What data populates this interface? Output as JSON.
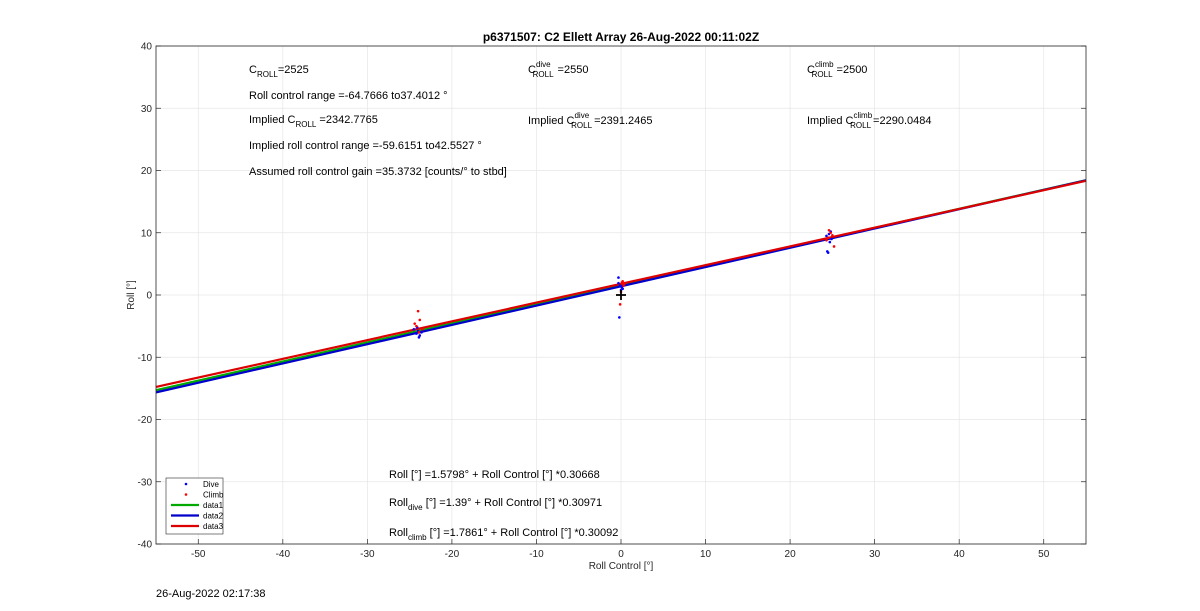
{
  "chart_data": {
    "type": "scatter",
    "title": "p6371507: C2 Ellett Array 26-Aug-2022 00:11:02Z",
    "xlabel": "Roll Control [°]",
    "ylabel": "Roll [°]",
    "xlim": [
      -55,
      55
    ],
    "ylim": [
      -40,
      40
    ],
    "xticks": [
      -50,
      -40,
      -30,
      -20,
      -10,
      0,
      10,
      20,
      30,
      40,
      50
    ],
    "yticks": [
      -40,
      -30,
      -20,
      -10,
      0,
      10,
      20,
      30,
      40
    ],
    "grid": true,
    "legend_position": "bottom-left",
    "series": [
      {
        "name": "Dive",
        "kind": "points",
        "color": "#0000ff",
        "points": [
          [
            -24.2,
            -6.2
          ],
          [
            -24.0,
            -5.8
          ],
          [
            -23.8,
            -6.5
          ],
          [
            -24.5,
            -5.5
          ],
          [
            -23.6,
            -6.0
          ],
          [
            -24.1,
            -5.2
          ],
          [
            -23.9,
            -6.8
          ],
          [
            -0.3,
            2.8
          ],
          [
            -0.1,
            1.5
          ],
          [
            0.1,
            1.2
          ],
          [
            -0.2,
            -3.6
          ],
          [
            0.0,
            0.8
          ],
          [
            -0.3,
            1.9
          ],
          [
            0.2,
            1.0
          ],
          [
            24.3,
            9.5
          ],
          [
            24.6,
            9.8
          ],
          [
            24.8,
            10.2
          ],
          [
            24.4,
            7.0
          ],
          [
            24.9,
            9.0
          ],
          [
            24.7,
            8.5
          ],
          [
            24.5,
            6.8
          ]
        ]
      },
      {
        "name": "Climb",
        "kind": "points",
        "color": "#ff0000",
        "points": [
          [
            -24.0,
            -2.6
          ],
          [
            -23.8,
            -4.0
          ],
          [
            -24.2,
            -5.0
          ],
          [
            -23.5,
            -5.5
          ],
          [
            -24.4,
            -4.6
          ],
          [
            -23.9,
            -6.0
          ],
          [
            0.1,
            2.0
          ],
          [
            0.3,
            1.5
          ],
          [
            -0.1,
            -1.5
          ],
          [
            0.2,
            2.2
          ],
          [
            0.0,
            0.5
          ],
          [
            0.4,
            1.8
          ],
          [
            24.5,
            9.2
          ],
          [
            24.8,
            10.0
          ],
          [
            25.2,
            7.8
          ],
          [
            24.3,
            8.8
          ],
          [
            25.0,
            9.6
          ],
          [
            24.6,
            10.4
          ]
        ]
      },
      {
        "name": "data1",
        "kind": "line",
        "color": "#00aa00",
        "intercept": 1.5798,
        "slope": 0.30668
      },
      {
        "name": "data2",
        "kind": "line",
        "color": "#0000cc",
        "intercept": 1.39,
        "slope": 0.30971
      },
      {
        "name": "data3",
        "kind": "line",
        "color": "#dd0000",
        "intercept": 1.7861,
        "slope": 0.30092
      }
    ],
    "marker": {
      "symbol": "+",
      "x": 0,
      "y": 0,
      "color": "#000000"
    },
    "annotations": {
      "croll_main": "C",
      "croll_sub": "ROLL",
      "croll_val": "=2525",
      "croll_dive_main": "C",
      "croll_dive_sup": "dive",
      "croll_dive_sub": "ROLL",
      "croll_dive_val": "=2550",
      "croll_climb_main": "C",
      "croll_climb_sup": "climb",
      "croll_climb_sub": "ROLL",
      "croll_climb_val": "=2500",
      "roll_range": "Roll control range =-64.7666 to37.4012 °",
      "implied_main": "Implied C",
      "implied_sub": "ROLL",
      "implied_val": " =2342.7765",
      "implied_dive_main": "Implied C",
      "implied_dive_sup": "dive",
      "implied_dive_sub": "ROLL",
      "implied_dive_val": "=2391.2465",
      "implied_climb_main": "Implied C",
      "implied_climb_sup": "climb",
      "implied_climb_sub": "ROLL",
      "implied_climb_val": "=2290.0484",
      "implied_range": "Implied roll control range =-59.6151 to42.5527 °",
      "gain": "Assumed roll control gain =35.3732 [counts/° to stbd]",
      "fit_all": "Roll [°] =1.5798° + Roll Control [°] *0.30668",
      "fit_dive_main": "Roll",
      "fit_dive_sub": "dive",
      "fit_dive_val": " [°] =1.39° + Roll Control [°] *0.30971",
      "fit_climb_main": "Roll",
      "fit_climb_sub": "climb",
      "fit_climb_val": " [°] =1.7861° + Roll Control [°] *0.30092"
    }
  },
  "footer": {
    "timestamp": "26-Aug-2022 02:17:38"
  }
}
